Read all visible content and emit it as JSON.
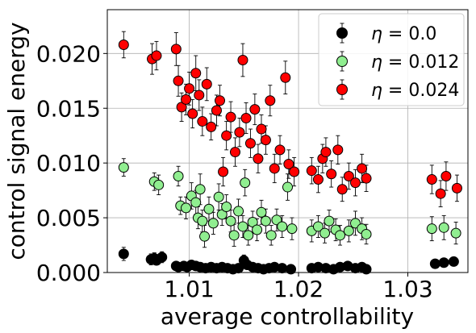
{
  "chart_data": {
    "type": "scatter",
    "xlabel": "average controllability",
    "ylabel": "control signal energy",
    "xlim": [
      1.0025,
      1.0355
    ],
    "ylim": [
      0,
      0.024
    ],
    "xticks": [
      1.01,
      1.02,
      1.03
    ],
    "xtick_labels": [
      "1.01",
      "1.02",
      "1.03"
    ],
    "yticks": [
      0,
      0.005,
      0.01,
      0.015,
      0.02
    ],
    "ytick_labels": [
      "0.000",
      "0.005",
      "0.010",
      "0.015",
      "0.020"
    ],
    "grid": true,
    "legend_position": "top-right",
    "error_bars": true,
    "series": [
      {
        "name": "$\\eta = 0.0$",
        "label_prefix": "η = ",
        "label_value": "0.0",
        "color": "#000000",
        "points": [
          [
            1.004,
            0.0017,
            0.0006
          ],
          [
            1.0065,
            0.0012,
            0.0005
          ],
          [
            1.0068,
            0.0013,
            0.0005
          ],
          [
            1.007,
            0.0011,
            0.0004
          ],
          [
            1.0075,
            0.0014,
            0.0005
          ],
          [
            1.0088,
            0.0006,
            0.0002
          ],
          [
            1.009,
            0.0005,
            0.0002
          ],
          [
            1.0095,
            0.0006,
            0.0002
          ],
          [
            1.0098,
            0.0005,
            0.0002
          ],
          [
            1.0102,
            0.0007,
            0.0003
          ],
          [
            1.0106,
            0.0006,
            0.0002
          ],
          [
            1.011,
            0.0005,
            0.0002
          ],
          [
            1.0115,
            0.0004,
            0.0002
          ],
          [
            1.012,
            0.0005,
            0.0002
          ],
          [
            1.0125,
            0.0004,
            0.0002
          ],
          [
            1.013,
            0.0005,
            0.0002
          ],
          [
            1.0135,
            0.0004,
            0.0002
          ],
          [
            1.014,
            0.0003,
            0.0002
          ],
          [
            1.0145,
            0.0004,
            0.0002
          ],
          [
            1.015,
            0.0011,
            0.0005
          ],
          [
            1.0153,
            0.0007,
            0.0003
          ],
          [
            1.0158,
            0.0005,
            0.0002
          ],
          [
            1.0163,
            0.0004,
            0.0002
          ],
          [
            1.0168,
            0.0003,
            0.0002
          ],
          [
            1.0173,
            0.0004,
            0.0002
          ],
          [
            1.0178,
            0.0005,
            0.0002
          ],
          [
            1.0185,
            0.0004,
            0.0002
          ],
          [
            1.0193,
            0.0003,
            0.0002
          ],
          [
            1.0212,
            0.0004,
            0.0002
          ],
          [
            1.0218,
            0.0005,
            0.0002
          ],
          [
            1.0225,
            0.0004,
            0.0002
          ],
          [
            1.0232,
            0.0003,
            0.0002
          ],
          [
            1.0238,
            0.0005,
            0.0002
          ],
          [
            1.0245,
            0.0006,
            0.0003
          ],
          [
            1.0252,
            0.0004,
            0.0002
          ],
          [
            1.0258,
            0.0005,
            0.0002
          ],
          [
            1.0262,
            0.0003,
            0.0002
          ],
          [
            1.0325,
            0.0008,
            0.0003
          ],
          [
            1.0333,
            0.0009,
            0.0003
          ],
          [
            1.0342,
            0.001,
            0.0004
          ]
        ]
      },
      {
        "name": "$\\eta = 0.012$",
        "label_prefix": "η = ",
        "label_value": "0.012",
        "color": "#90ee90",
        "points": [
          [
            1.004,
            0.0096,
            0.0008
          ],
          [
            1.0068,
            0.0083,
            0.0008
          ],
          [
            1.0072,
            0.008,
            0.0009
          ],
          [
            1.009,
            0.0088,
            0.0009
          ],
          [
            1.0092,
            0.0061,
            0.0008
          ],
          [
            1.0097,
            0.0059,
            0.001
          ],
          [
            1.0102,
            0.007,
            0.0012
          ],
          [
            1.0106,
            0.0064,
            0.0011
          ],
          [
            1.0108,
            0.005,
            0.001
          ],
          [
            1.011,
            0.0076,
            0.0014
          ],
          [
            1.0112,
            0.0047,
            0.001
          ],
          [
            1.0114,
            0.0033,
            0.001
          ],
          [
            1.0118,
            0.0058,
            0.0011
          ],
          [
            1.0122,
            0.0045,
            0.001
          ],
          [
            1.0127,
            0.0069,
            0.0012
          ],
          [
            1.013,
            0.0053,
            0.001
          ],
          [
            1.0134,
            0.006,
            0.0011
          ],
          [
            1.0138,
            0.0047,
            0.001
          ],
          [
            1.0141,
            0.0034,
            0.001
          ],
          [
            1.0145,
            0.0056,
            0.0011
          ],
          [
            1.0149,
            0.0042,
            0.001
          ],
          [
            1.0151,
            0.0082,
            0.0012
          ],
          [
            1.0154,
            0.0034,
            0.0009
          ],
          [
            1.0158,
            0.0046,
            0.001
          ],
          [
            1.0162,
            0.0039,
            0.001
          ],
          [
            1.0166,
            0.0055,
            0.0011
          ],
          [
            1.017,
            0.0047,
            0.0011
          ],
          [
            1.0175,
            0.0034,
            0.0009
          ],
          [
            1.018,
            0.0048,
            0.001
          ],
          [
            1.0185,
            0.0042,
            0.001
          ],
          [
            1.019,
            0.0078,
            0.0012
          ],
          [
            1.0194,
            0.004,
            0.001
          ],
          [
            1.0212,
            0.0038,
            0.001
          ],
          [
            1.0218,
            0.0042,
            0.001
          ],
          [
            1.0224,
            0.0036,
            0.0009
          ],
          [
            1.0228,
            0.0047,
            0.001
          ],
          [
            1.0234,
            0.0039,
            0.001
          ],
          [
            1.0238,
            0.0034,
            0.0009
          ],
          [
            1.0246,
            0.0038,
            0.001
          ],
          [
            1.0252,
            0.0045,
            0.0011
          ],
          [
            1.0258,
            0.004,
            0.001
          ],
          [
            1.0262,
            0.0035,
            0.0009
          ],
          [
            1.0322,
            0.004,
            0.0011
          ],
          [
            1.0333,
            0.0041,
            0.0011
          ],
          [
            1.0344,
            0.0036,
            0.001
          ]
        ]
      },
      {
        "name": "$\\eta = 0.024$",
        "label_prefix": "η = ",
        "label_value": "0.024",
        "color": "#ff0000",
        "points": [
          [
            1.004,
            0.0208,
            0.0012
          ],
          [
            1.0066,
            0.0195,
            0.0014
          ],
          [
            1.007,
            0.0198,
            0.0013
          ],
          [
            1.0088,
            0.0204,
            0.0015
          ],
          [
            1.009,
            0.0175,
            0.0014
          ],
          [
            1.0093,
            0.0151,
            0.0013
          ],
          [
            1.0097,
            0.0158,
            0.0014
          ],
          [
            1.01,
            0.0168,
            0.0015
          ],
          [
            1.0103,
            0.0145,
            0.0013
          ],
          [
            1.0106,
            0.0182,
            0.0016
          ],
          [
            1.0109,
            0.0162,
            0.0014
          ],
          [
            1.0112,
            0.0138,
            0.0013
          ],
          [
            1.0116,
            0.0172,
            0.0015
          ],
          [
            1.012,
            0.0133,
            0.0012
          ],
          [
            1.0125,
            0.0148,
            0.0014
          ],
          [
            1.0128,
            0.0157,
            0.0014
          ],
          [
            1.0131,
            0.0092,
            0.0013
          ],
          [
            1.0134,
            0.0125,
            0.0013
          ],
          [
            1.0138,
            0.0142,
            0.0014
          ],
          [
            1.0142,
            0.011,
            0.0013
          ],
          [
            1.0146,
            0.0128,
            0.0013
          ],
          [
            1.0149,
            0.0194,
            0.0015
          ],
          [
            1.0152,
            0.0141,
            0.0014
          ],
          [
            1.0156,
            0.0118,
            0.0013
          ],
          [
            1.016,
            0.0149,
            0.0014
          ],
          [
            1.0163,
            0.0104,
            0.0013
          ],
          [
            1.0166,
            0.0131,
            0.0013
          ],
          [
            1.017,
            0.0121,
            0.0013
          ],
          [
            1.0174,
            0.0157,
            0.0014
          ],
          [
            1.0178,
            0.0095,
            0.0013
          ],
          [
            1.0183,
            0.0112,
            0.0013
          ],
          [
            1.0188,
            0.0178,
            0.0015
          ],
          [
            1.0191,
            0.0099,
            0.0013
          ],
          [
            1.0196,
            0.0092,
            0.0013
          ],
          [
            1.0212,
            0.0093,
            0.0012
          ],
          [
            1.0218,
            0.0085,
            0.0012
          ],
          [
            1.0222,
            0.0104,
            0.0013
          ],
          [
            1.0225,
            0.011,
            0.0013
          ],
          [
            1.023,
            0.009,
            0.0012
          ],
          [
            1.0236,
            0.0112,
            0.0013
          ],
          [
            1.024,
            0.0076,
            0.0011
          ],
          [
            1.0246,
            0.0088,
            0.0012
          ],
          [
            1.0252,
            0.0082,
            0.0012
          ],
          [
            1.0258,
            0.0095,
            0.0013
          ],
          [
            1.0262,
            0.0086,
            0.0012
          ],
          [
            1.0322,
            0.0085,
            0.0013
          ],
          [
            1.033,
            0.0072,
            0.0012
          ],
          [
            1.0335,
            0.0088,
            0.0013
          ],
          [
            1.0345,
            0.0077,
            0.0012
          ]
        ]
      }
    ]
  }
}
